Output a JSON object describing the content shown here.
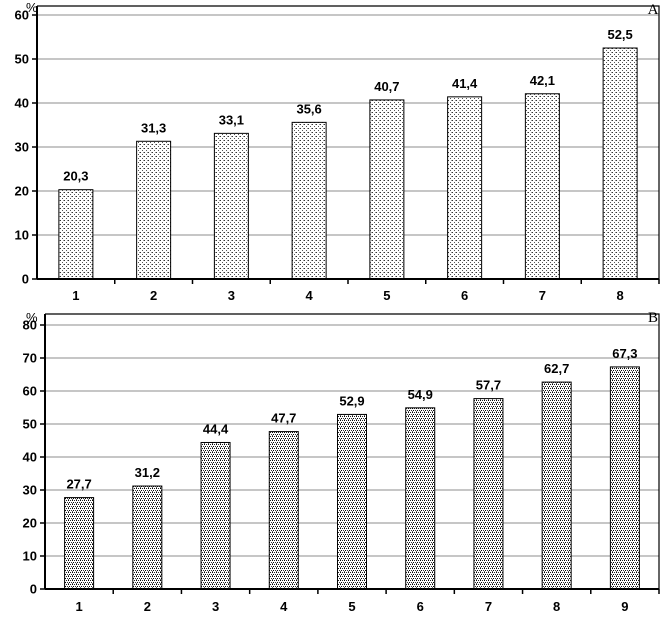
{
  "chart_data": [
    {
      "type": "bar",
      "panel": "A",
      "y_unit": "%",
      "categories": [
        "1",
        "2",
        "3",
        "4",
        "5",
        "6",
        "7",
        "8"
      ],
      "values": [
        20.3,
        31.3,
        33.1,
        35.6,
        40.7,
        41.4,
        42.1,
        52.5
      ],
      "value_labels": [
        "20,3",
        "31,3",
        "33,1",
        "35,6",
        "40,7",
        "41,4",
        "42,1",
        "52,5"
      ],
      "ylim": [
        0,
        60
      ],
      "yticks": [
        0,
        10,
        20,
        30,
        40,
        50,
        60
      ],
      "grid": true,
      "bar_pattern": "light-stipple"
    },
    {
      "type": "bar",
      "panel": "B",
      "y_unit": "%",
      "categories": [
        "1",
        "2",
        "3",
        "4",
        "5",
        "6",
        "7",
        "8",
        "9"
      ],
      "values": [
        27.7,
        31.2,
        44.4,
        47.7,
        52.9,
        54.9,
        57.7,
        62.7,
        67.3
      ],
      "value_labels": [
        "27,7",
        "31,2",
        "44,4",
        "47,7",
        "52,9",
        "54,9",
        "57,7",
        "62,7",
        "67,3"
      ],
      "ylim": [
        0,
        80
      ],
      "yticks": [
        0,
        10,
        20,
        30,
        40,
        50,
        60,
        70,
        80
      ],
      "grid": true,
      "bar_pattern": "dense-stipple"
    }
  ]
}
